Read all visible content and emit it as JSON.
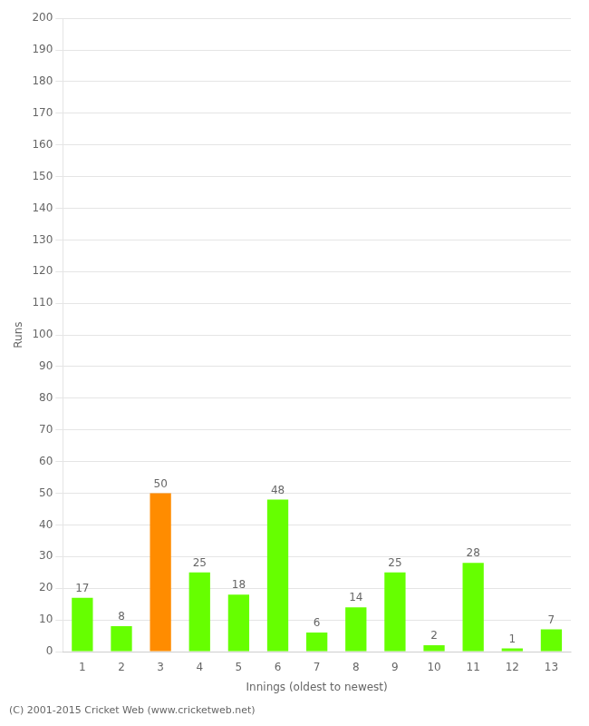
{
  "chart_data": {
    "type": "bar",
    "categories": [
      "1",
      "2",
      "3",
      "4",
      "5",
      "6",
      "7",
      "8",
      "9",
      "10",
      "11",
      "12",
      "13"
    ],
    "values": [
      17,
      8,
      50,
      25,
      18,
      48,
      6,
      14,
      25,
      2,
      28,
      1,
      7
    ],
    "colors": [
      "#66ff00",
      "#66ff00",
      "#ff8c00",
      "#66ff00",
      "#66ff00",
      "#66ff00",
      "#66ff00",
      "#66ff00",
      "#66ff00",
      "#66ff00",
      "#66ff00",
      "#66ff00",
      "#66ff00"
    ],
    "xlabel": "Innings (oldest to newest)",
    "ylabel": "Runs",
    "ylim": [
      0,
      200
    ],
    "yticks": [
      0,
      10,
      20,
      30,
      40,
      50,
      60,
      70,
      80,
      90,
      100,
      110,
      120,
      130,
      140,
      150,
      160,
      170,
      180,
      190,
      200
    ],
    "grid": true,
    "data_labels": true,
    "annotations": [
      "(C) 2001-2015 Cricket Web (www.cricketweb.net)"
    ]
  }
}
